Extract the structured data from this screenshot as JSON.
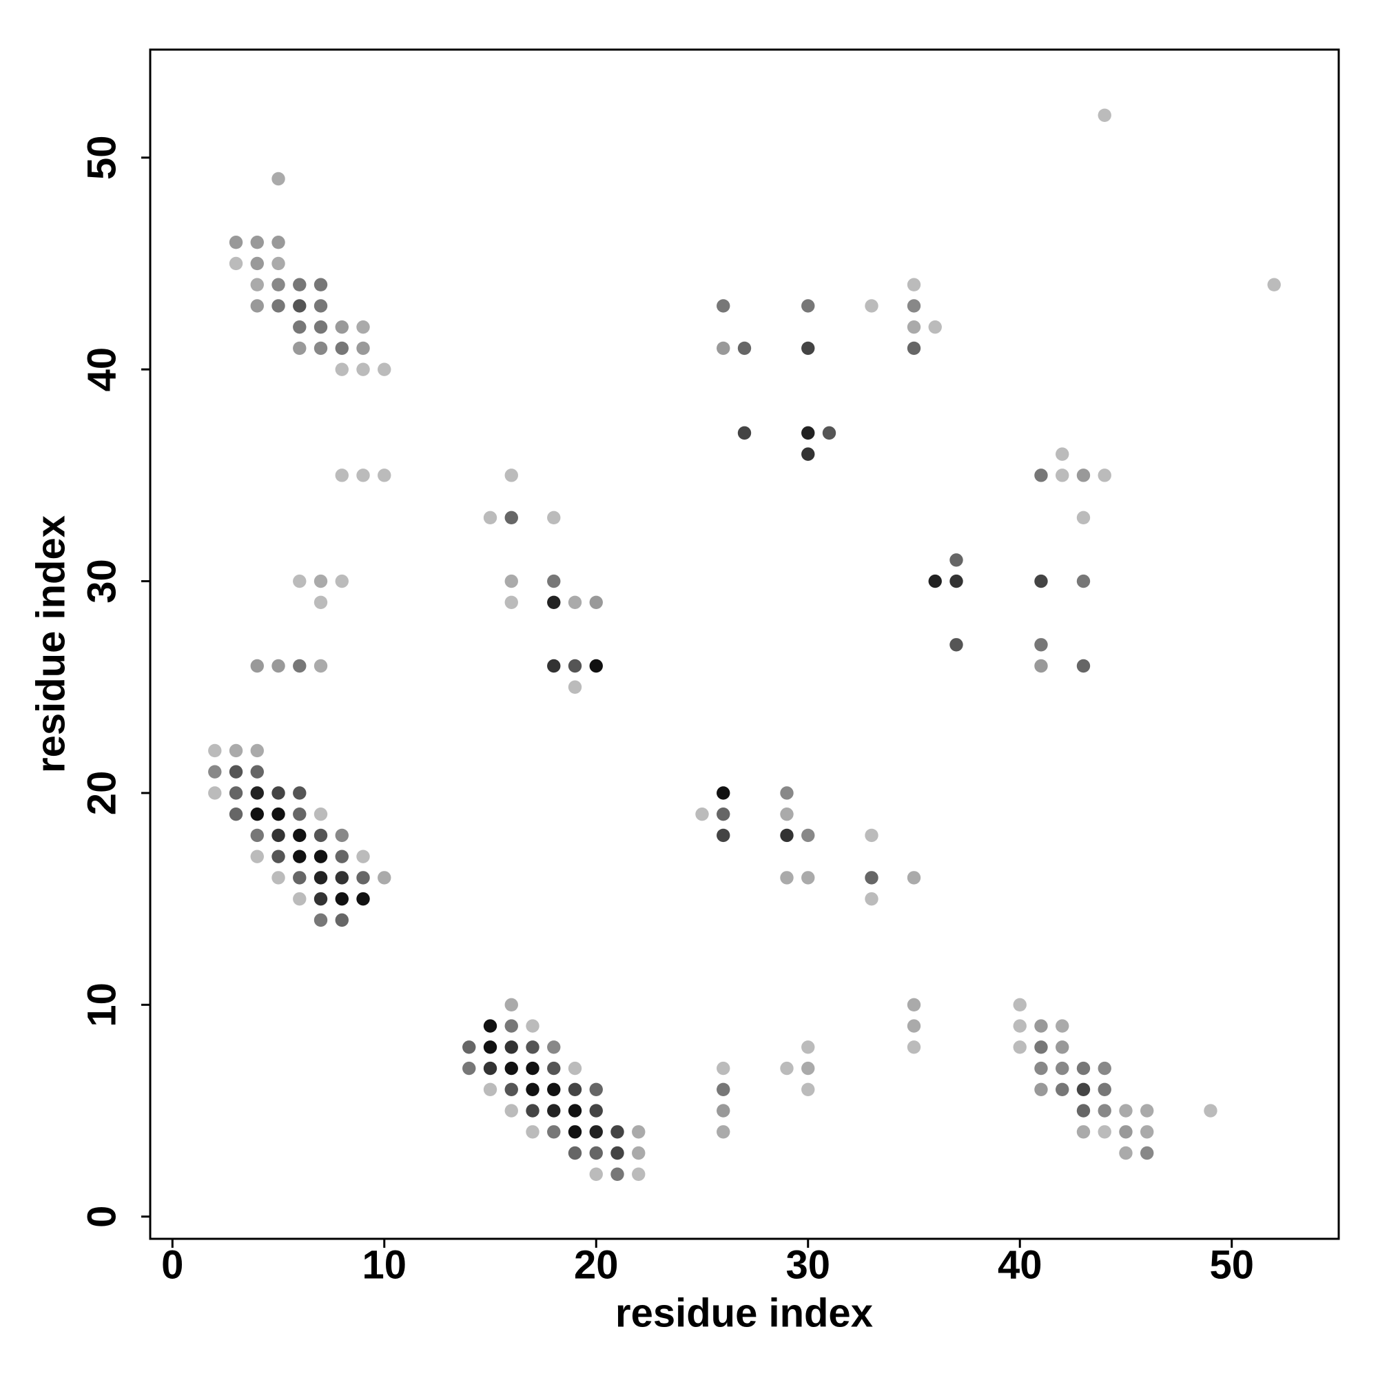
{
  "chart_data": {
    "type": "scatter",
    "xlabel": "residue index",
    "ylabel": "residue index",
    "xlim": [
      -1.05,
      55.05
    ],
    "ylim": [
      -1.05,
      55.1
    ],
    "xticks": [
      0,
      10,
      20,
      30,
      40,
      50
    ],
    "yticks": [
      0,
      10,
      20,
      30,
      40,
      50
    ],
    "x": [
      5,
      3,
      4,
      5,
      3,
      4,
      5,
      4,
      5,
      6,
      7,
      4,
      5,
      6,
      7,
      6,
      7,
      8,
      9,
      6,
      7,
      8,
      9,
      8,
      9,
      10,
      8,
      9,
      10,
      6,
      7,
      8,
      7,
      4,
      5,
      6,
      7,
      2,
      3,
      4,
      2,
      3,
      4,
      2,
      3,
      4,
      5,
      6,
      3,
      4,
      5,
      6,
      7,
      4,
      5,
      6,
      7,
      8,
      4,
      5,
      6,
      7,
      8,
      9,
      5,
      6,
      7,
      8,
      9,
      10,
      6,
      7,
      8,
      9,
      7,
      8,
      16,
      15,
      16,
      17,
      14,
      15,
      16,
      17,
      18,
      14,
      15,
      16,
      17,
      18,
      19,
      15,
      16,
      17,
      18,
      19,
      20,
      16,
      17,
      18,
      19,
      20,
      17,
      18,
      19,
      20,
      21,
      22,
      19,
      20,
      21,
      22,
      20,
      21,
      22,
      16,
      15,
      16,
      18,
      16,
      18,
      16,
      18,
      19,
      20,
      18,
      19,
      20,
      19,
      26,
      29,
      25,
      26,
      29,
      26,
      29,
      30,
      33,
      29,
      30,
      33,
      35,
      33,
      35,
      35,
      35,
      30,
      29,
      30,
      30,
      26,
      26,
      26,
      26,
      26,
      30,
      33,
      35,
      35,
      35,
      36,
      26,
      27,
      30,
      35,
      27,
      30,
      31,
      30,
      42,
      41,
      42,
      43,
      44,
      43,
      37,
      36,
      37,
      41,
      43,
      37,
      41,
      41,
      43,
      40,
      40,
      41,
      42,
      40,
      41,
      42,
      41,
      42,
      43,
      44,
      41,
      42,
      43,
      44,
      43,
      44,
      45,
      46,
      43,
      44,
      45,
      46,
      45,
      46,
      49,
      44,
      52
    ],
    "values": [
      49,
      46,
      46,
      46,
      45,
      45,
      45,
      44,
      44,
      44,
      44,
      43,
      43,
      43,
      43,
      42,
      42,
      42,
      42,
      41,
      41,
      41,
      41,
      40,
      40,
      40,
      35,
      35,
      35,
      30,
      30,
      30,
      29,
      26,
      26,
      26,
      26,
      22,
      22,
      22,
      21,
      21,
      21,
      20,
      20,
      20,
      20,
      20,
      19,
      19,
      19,
      19,
      19,
      18,
      18,
      18,
      18,
      18,
      17,
      17,
      17,
      17,
      17,
      17,
      16,
      16,
      16,
      16,
      16,
      16,
      15,
      15,
      15,
      15,
      14,
      14,
      10,
      9,
      9,
      9,
      8,
      8,
      8,
      8,
      8,
      7,
      7,
      7,
      7,
      7,
      7,
      6,
      6,
      6,
      6,
      6,
      6,
      5,
      5,
      5,
      5,
      5,
      4,
      4,
      4,
      4,
      4,
      4,
      3,
      3,
      3,
      3,
      2,
      2,
      2,
      35,
      33,
      33,
      33,
      30,
      30,
      29,
      29,
      29,
      29,
      26,
      26,
      26,
      25,
      20,
      20,
      19,
      19,
      19,
      18,
      18,
      18,
      18,
      16,
      16,
      16,
      16,
      15,
      10,
      9,
      8,
      8,
      7,
      7,
      6,
      7,
      6,
      5,
      4,
      43,
      43,
      43,
      43,
      44,
      42,
      42,
      41,
      41,
      41,
      41,
      37,
      37,
      37,
      36,
      36,
      35,
      35,
      35,
      35,
      33,
      31,
      30,
      30,
      30,
      30,
      27,
      27,
      26,
      26,
      10,
      9,
      9,
      9,
      8,
      8,
      8,
      7,
      7,
      7,
      7,
      6,
      6,
      6,
      6,
      5,
      5,
      5,
      5,
      4,
      4,
      4,
      4,
      3,
      3,
      5,
      52,
      44
    ],
    "colors": [
      "#aaa",
      "#999",
      "#999",
      "#999",
      "#bbb",
      "#999",
      "#aaa",
      "#aaa",
      "#888",
      "#777",
      "#777",
      "#999",
      "#777",
      "#555",
      "#777",
      "#777",
      "#777",
      "#999",
      "#aaa",
      "#999",
      "#888",
      "#777",
      "#999",
      "#bbb",
      "#bbb",
      "#bbb",
      "#bbb",
      "#bbb",
      "#bbb",
      "#bbb",
      "#aaa",
      "#bbb",
      "#bbb",
      "#999",
      "#999",
      "#777",
      "#aaa",
      "#bbb",
      "#aaa",
      "#aaa",
      "#888",
      "#555",
      "#666",
      "#bbb",
      "#666",
      "#222",
      "#444",
      "#555",
      "#666",
      "#111",
      "#111",
      "#666",
      "#bbb",
      "#777",
      "#333",
      "#111",
      "#555",
      "#888",
      "#bbb",
      "#555",
      "#111",
      "#111",
      "#666",
      "#bbb",
      "#bbb",
      "#666",
      "#222",
      "#333",
      "#666",
      "#aaa",
      "#bbb",
      "#333",
      "#111",
      "#111",
      "#777",
      "#666",
      "#aaa",
      "#111",
      "#777",
      "#bbb",
      "#666",
      "#111",
      "#333",
      "#555",
      "#888",
      "#777",
      "#333",
      "#111",
      "#111",
      "#555",
      "#bbb",
      "#bbb",
      "#555",
      "#111",
      "#111",
      "#444",
      "#666",
      "#bbb",
      "#444",
      "#222",
      "#111",
      "#444",
      "#bbb",
      "#777",
      "#111",
      "#222",
      "#444",
      "#aaa",
      "#666",
      "#666",
      "#444",
      "#aaa",
      "#bbb",
      "#777",
      "#bbb",
      "#bbb",
      "#bbb",
      "#666",
      "#bbb",
      "#aaa",
      "#777",
      "#bbb",
      "#222",
      "#aaa",
      "#999",
      "#333",
      "#555",
      "#111",
      "#bbb",
      "#111",
      "#888",
      "#bbb",
      "#666",
      "#aaa",
      "#444",
      "#333",
      "#888",
      "#bbb",
      "#aaa",
      "#aaa",
      "#666",
      "#aaa",
      "#bbb",
      "#aaa",
      "#aaa",
      "#bbb",
      "#bbb",
      "#bbb",
      "#aaa",
      "#bbb",
      "#bbb",
      "#777",
      "#999",
      "#aaa",
      "#777",
      "#777",
      "#bbb",
      "#888",
      "#bbb",
      "#aaa",
      "#bbb",
      "#999",
      "#666",
      "#444",
      "#666",
      "#444",
      "#222",
      "#555",
      "#333",
      "#bbb",
      "#777",
      "#bbb",
      "#999",
      "#bbb",
      "#bbb",
      "#666",
      "#222",
      "#333",
      "#444",
      "#777",
      "#555",
      "#777",
      "#999",
      "#666",
      "#bbb",
      "#bbb",
      "#999",
      "#aaa",
      "#bbb",
      "#777",
      "#999",
      "#888",
      "#888",
      "#777",
      "#888",
      "#999",
      "#777",
      "#444",
      "#777",
      "#666",
      "#888",
      "#aaa",
      "#aaa",
      "#aaa",
      "#bbb",
      "#999",
      "#aaa",
      "#aaa",
      "#888",
      "#bbb",
      "#bbb",
      "#bbb"
    ]
  }
}
